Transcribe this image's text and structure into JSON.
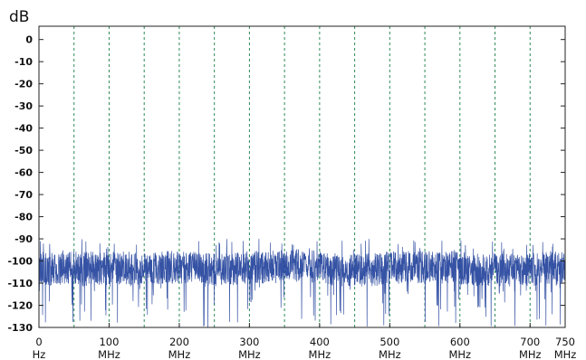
{
  "chart_data": {
    "type": "line",
    "y_unit": "dB",
    "x_ticks": [
      {
        "value": 0,
        "line1": "0",
        "line2": "Hz"
      },
      {
        "value": 100,
        "line1": "100",
        "line2": "MHz"
      },
      {
        "value": 200,
        "line1": "200",
        "line2": "MHz"
      },
      {
        "value": 300,
        "line1": "300",
        "line2": "MHz"
      },
      {
        "value": 400,
        "line1": "400",
        "line2": "MHz"
      },
      {
        "value": 500,
        "line1": "500",
        "line2": "MHz"
      },
      {
        "value": 600,
        "line1": "600",
        "line2": "MHz"
      },
      {
        "value": 700,
        "line1": "700",
        "line2": "MHz"
      },
      {
        "value": 750,
        "line1": "750",
        "line2": "MHz"
      }
    ],
    "y_ticks": [
      {
        "value": 0,
        "label": "0"
      },
      {
        "value": -10,
        "label": "-10"
      },
      {
        "value": -20,
        "label": "-20"
      },
      {
        "value": -30,
        "label": "-30"
      },
      {
        "value": -40,
        "label": "-40"
      },
      {
        "value": -50,
        "label": "-50"
      },
      {
        "value": -60,
        "label": "-60"
      },
      {
        "value": -70,
        "label": "-70"
      },
      {
        "value": -80,
        "label": "-80"
      },
      {
        "value": -90,
        "label": "-90"
      },
      {
        "value": -100,
        "label": "-100"
      },
      {
        "value": -110,
        "label": "-110"
      },
      {
        "value": -120,
        "label": "-120"
      },
      {
        "value": -130,
        "label": "-130"
      }
    ],
    "xlim": [
      0,
      750
    ],
    "ylim": [
      -130,
      6
    ],
    "grid_x_values": [
      50,
      100,
      150,
      200,
      250,
      300,
      350,
      400,
      450,
      500,
      550,
      600,
      650,
      700
    ],
    "grid": "vertical dashed",
    "series": [
      {
        "color": "#1f3f9a",
        "noise_floor_db": -103,
        "noise_band_db": [
          -96,
          -111
        ],
        "peak_db": -90,
        "min_db": -130,
        "x": [
          0,
          25,
          50,
          75,
          100,
          125,
          150,
          175,
          200,
          225,
          250,
          275,
          300,
          325,
          350,
          375,
          400,
          425,
          450,
          475,
          500,
          525,
          550,
          575,
          600,
          625,
          650,
          675,
          700,
          725,
          750
        ],
        "values": [
          -103,
          -104,
          -103,
          -103,
          -104,
          -103,
          -104,
          -103,
          -103,
          -103,
          -104,
          -104,
          -103,
          -103,
          -102,
          -102,
          -103,
          -104,
          -104,
          -104,
          -103,
          -103,
          -103,
          -103,
          -103,
          -104,
          -104,
          -104,
          -104,
          -103,
          -103
        ]
      }
    ],
    "colors": {
      "series": "#1f3f9a",
      "grid": "#2e8b57",
      "axis": "#222222",
      "text": "#111111"
    }
  }
}
